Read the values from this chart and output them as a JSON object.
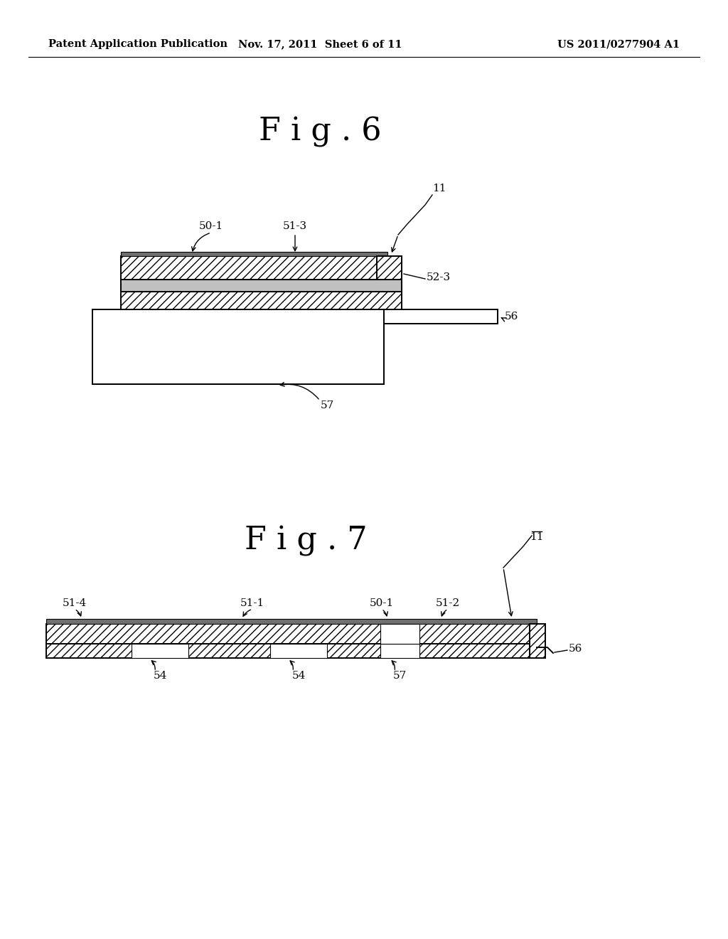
{
  "bg": "#ffffff",
  "fg": "#000000",
  "header_left": "Patent Application Publication",
  "header_mid": "Nov. 17, 2011  Sheet 6 of 11",
  "header_right": "US 2011/0277904 A1",
  "fig6_title": "F i g . 6",
  "fig7_title": "F i g . 7",
  "gray_light": "#e8e8e8",
  "gray_mid": "#c0c0c0",
  "gray_dark": "#707070"
}
